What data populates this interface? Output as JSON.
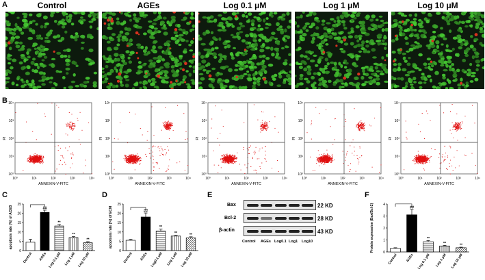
{
  "panels": {
    "A": "A",
    "B": "B",
    "C": "C",
    "D": "D",
    "E": "E",
    "F": "F"
  },
  "conditions": [
    "Control",
    "AGEs",
    "Log 0.1 μM",
    "Log 1 μM",
    "Log 10 μM"
  ],
  "flow": {
    "x_label": "ANNEXIN-V-FITC",
    "y_label": "PI",
    "ticks": [
      "10⁰",
      "10¹",
      "10²",
      "10³",
      "10⁴"
    ]
  },
  "western": {
    "proteins": [
      "Bax",
      "Bcl-2",
      "β-actin"
    ],
    "sizes": [
      "22 KD",
      "28 KD",
      "43 KD"
    ],
    "lanes": [
      "Control",
      "AGEs",
      "Log0.1",
      "Log1",
      "Log10"
    ]
  },
  "chart_data": [
    {
      "type": "bar",
      "panel": "C",
      "ylabel": "apoptosis rate (%) of ACEB",
      "categories": [
        "Control",
        "AGEs",
        "Log 0.1 μM",
        "Log 1 μM",
        "Log 10 μM"
      ],
      "values": [
        4.5,
        20.5,
        13.2,
        7.0,
        4.2
      ],
      "errors": [
        1.5,
        1.2,
        0.8,
        0.5,
        0.6
      ],
      "ylim": [
        0,
        25
      ],
      "yticks": [
        "0",
        "5",
        "10",
        "15",
        "20",
        "25"
      ],
      "significance": [
        "",
        "##",
        "**",
        "**",
        "**"
      ]
    },
    {
      "type": "bar",
      "panel": "D",
      "ylabel": "apoptosis rate (%) of ECM",
      "categories": [
        "Control",
        "AGEs",
        "Log0.1 μM",
        "Log 1 μM",
        "Log 10 μM"
      ],
      "values": [
        5.5,
        18.0,
        10.5,
        7.8,
        6.8
      ],
      "errors": [
        0.5,
        2.2,
        1.0,
        0.4,
        0.6
      ],
      "ylim": [
        0,
        25
      ],
      "yticks": [
        "0",
        "5",
        "10",
        "15",
        "20",
        "25"
      ],
      "significance": [
        "",
        "##",
        "**",
        "**",
        "**"
      ]
    },
    {
      "type": "bar",
      "panel": "F",
      "ylabel": "Protein expression (Bax/Bcl-2)",
      "categories": [
        "Control",
        "AGEs",
        "Log 0.1 μM",
        "Log 1 μM",
        "Log 10 μM"
      ],
      "values": [
        0.3,
        3.1,
        0.85,
        0.5,
        0.35
      ],
      "errors": [
        0.05,
        0.45,
        0.1,
        0.05,
        0.05
      ],
      "ylim": [
        0,
        4
      ],
      "yticks": [
        "0",
        "1",
        "2",
        "3",
        "4"
      ],
      "significance": [
        "",
        "##",
        "**",
        "**",
        "**"
      ]
    }
  ],
  "colors": {
    "micro_bg": "#0d1a0d",
    "cell_green": "#4cbb3a",
    "cell_red": "#d8321e",
    "flow_dot": "#e01010",
    "bar_control": "#ffffff",
    "bar_ages": "#000000"
  }
}
